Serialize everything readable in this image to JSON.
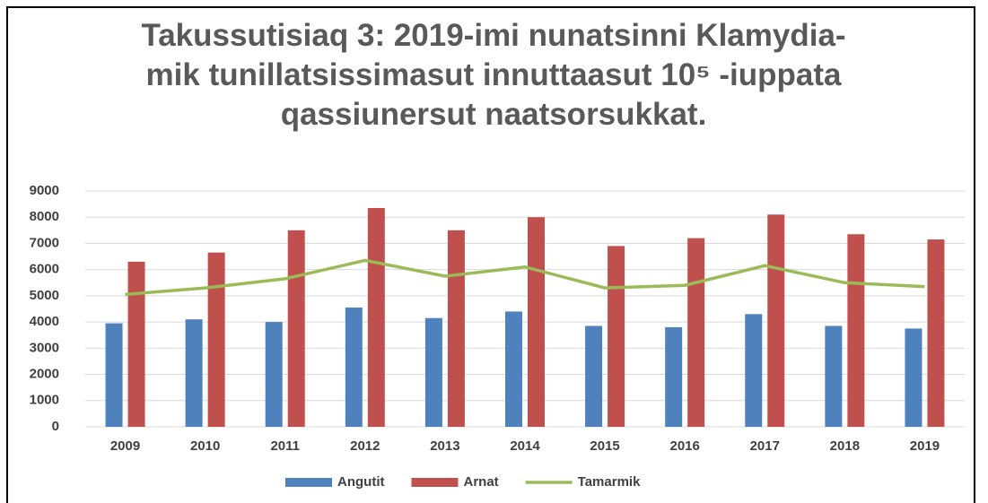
{
  "chart_data": {
    "type": "bar-line",
    "title": "Takussutisiaq 3: 2019-imi nunatsinni Klamydia-mik tunillatsissimasut innuttaasut 10⁵ -iuppata qassiunersut naatsorsukkat.",
    "categories": [
      "2009",
      "2010",
      "2011",
      "2012",
      "2013",
      "2014",
      "2015",
      "2016",
      "2017",
      "2018",
      "2019"
    ],
    "series": [
      {
        "name": "Angutit",
        "type": "bar",
        "color": "#4f81bd",
        "values": [
          3950,
          4100,
          4000,
          4550,
          4150,
          4400,
          3850,
          3800,
          4300,
          3850,
          3750
        ]
      },
      {
        "name": "Arnat",
        "type": "bar",
        "color": "#c0504d",
        "values": [
          6300,
          6650,
          7500,
          8350,
          7500,
          8000,
          6900,
          7200,
          8100,
          7350,
          7150
        ]
      },
      {
        "name": "Tamarmik",
        "type": "line",
        "color": "#9bbb59",
        "values": [
          5050,
          5300,
          5650,
          6350,
          5750,
          6100,
          5300,
          5400,
          6150,
          5500,
          5350
        ]
      }
    ],
    "ylim": [
      0,
      9000
    ],
    "yticks": [
      0,
      1000,
      2000,
      3000,
      4000,
      5000,
      6000,
      7000,
      8000,
      9000
    ],
    "grid": true,
    "legend": "bottom"
  }
}
